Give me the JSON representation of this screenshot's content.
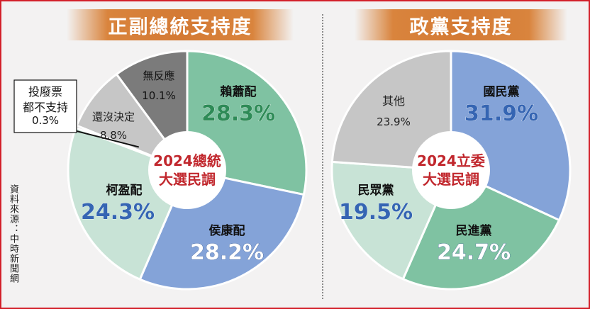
{
  "left_title": "正副總統支持度",
  "right_title": "政黨支持度",
  "source": "資料來源：中時新聞網",
  "chart_data": [
    {
      "type": "pie",
      "title": "正副總統支持度",
      "center_label": [
        "2024總統",
        "大選民調"
      ],
      "slices": [
        {
          "name": "賴蕭配",
          "value": 28.3,
          "value_label": "28.3%",
          "color": "#7fc2a2"
        },
        {
          "name": "侯康配",
          "value": 28.2,
          "value_label": "28.2%",
          "color": "#84a3d8"
        },
        {
          "name": "柯盈配",
          "value": 24.3,
          "value_label": "24.3%",
          "color": "#c8e3d6"
        },
        {
          "name": "投廢票都不支持",
          "value": 0.3,
          "value_label": "0.3%",
          "color": "#1a1a1a"
        },
        {
          "name": "還沒決定",
          "value": 8.8,
          "value_label": "8.8%",
          "color": "#c6c6c6"
        },
        {
          "name": "無反應",
          "value": 10.1,
          "value_label": "10.1%",
          "color": "#7b7b7b"
        }
      ]
    },
    {
      "type": "pie",
      "title": "政黨支持度",
      "center_label": [
        "2024立委",
        "大選民調"
      ],
      "slices": [
        {
          "name": "國民黨",
          "value": 31.9,
          "value_label": "31.9%",
          "color": "#84a3d8"
        },
        {
          "name": "民進黨",
          "value": 24.7,
          "value_label": "24.7%",
          "color": "#7fc2a2"
        },
        {
          "name": "民眾黨",
          "value": 19.5,
          "value_label": "19.5%",
          "color": "#c8e3d6"
        },
        {
          "name": "其他",
          "value": 23.9,
          "value_label": "23.9%",
          "color": "#c6c6c6"
        }
      ]
    }
  ]
}
